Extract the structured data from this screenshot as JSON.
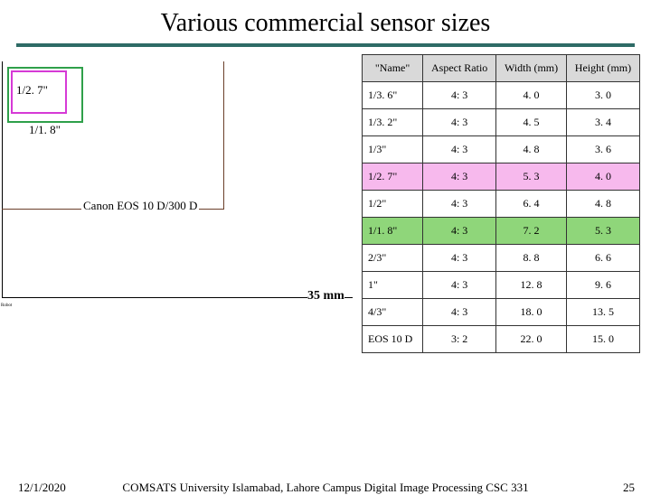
{
  "title": "Various commercial sensor sizes",
  "diagram": {
    "label_127": "1/2. 7\"",
    "label_118": "1/1. 8\"",
    "label_eos": "Canon EOS 10 D/300 D",
    "label_35": "35 mm",
    "label_robot": "Robot"
  },
  "table": {
    "headers": [
      "\"Name\"",
      "Aspect Ratio",
      "Width (mm)",
      "Height (mm)"
    ],
    "rows": [
      {
        "cells": [
          "1/3. 6\"",
          "4: 3",
          "4. 0",
          "3. 0"
        ],
        "bg": "#ffffff"
      },
      {
        "cells": [
          "1/3. 2\"",
          "4: 3",
          "4. 5",
          "3. 4"
        ],
        "bg": "#ffffff"
      },
      {
        "cells": [
          "1/3\"",
          "4: 3",
          "4. 8",
          "3. 6"
        ],
        "bg": "#ffffff"
      },
      {
        "cells": [
          "1/2. 7\"",
          "4: 3",
          "5. 3",
          "4. 0"
        ],
        "bg": "#f7b9ed"
      },
      {
        "cells": [
          "1/2\"",
          "4: 3",
          "6. 4",
          "4. 8"
        ],
        "bg": "#ffffff"
      },
      {
        "cells": [
          "1/1. 8\"",
          "4: 3",
          "7. 2",
          "5. 3"
        ],
        "bg": "#8fd67a"
      },
      {
        "cells": [
          "2/3\"",
          "4: 3",
          "8. 8",
          "6. 6"
        ],
        "bg": "#ffffff"
      },
      {
        "cells": [
          "1\"",
          "4: 3",
          "12. 8",
          "9. 6"
        ],
        "bg": "#ffffff"
      },
      {
        "cells": [
          "4/3\"",
          "4: 3",
          "18. 0",
          "13. 5"
        ],
        "bg": "#ffffff"
      },
      {
        "cells": [
          "EOS 10 D",
          "3: 2",
          "22. 0",
          "15. 0"
        ],
        "bg": "#ffffff"
      }
    ]
  },
  "footer": {
    "date": "12/1/2020",
    "center": "COMSATS University Islamabad, Lahore Campus   Digital Image Processing CSC 331",
    "page": "25"
  }
}
